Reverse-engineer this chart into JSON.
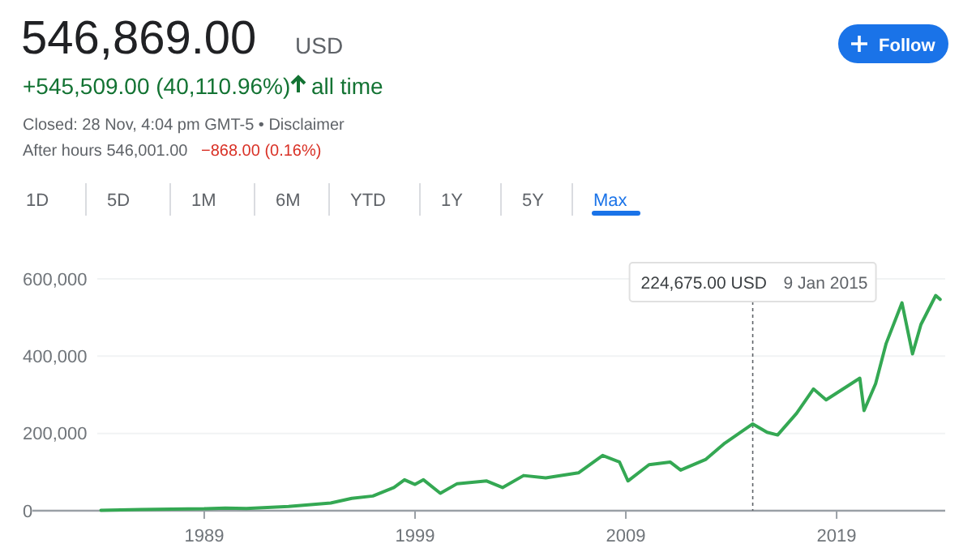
{
  "chart_data": {
    "type": "line",
    "title": "546,869.00",
    "annotations": [
      "USD",
      "+545,509.00 (40,110.96%)",
      "all time",
      "Closed: 28 Nov, 4:04 pm GMT-5 • Disclaimer",
      "After hours 546,001.00",
      "−868.00 (0.16%)",
      "Follow",
      "1D",
      "5D",
      "1M",
      "6M",
      "YTD",
      "1Y",
      "5Y",
      "Max",
      "224,675.00 USD",
      "9 Jan 2015"
    ],
    "x": [
      1984.1,
      1986,
      1989,
      1990,
      1991,
      1993,
      1995,
      1996,
      1997,
      1998,
      1998.5,
      1999,
      1999.4,
      2000.2,
      2001,
      2002.4,
      2003.15,
      2004.15,
      2005.2,
      2006.75,
      2007.9,
      2008.7,
      2009.1,
      2010.1,
      2011.1,
      2011.6,
      2012.8,
      2013.7,
      2015.02,
      2015.7,
      2016.2,
      2017.1,
      2017.9,
      2018.5,
      2020.1,
      2020.3,
      2020.85,
      2021.35,
      2022.1,
      2022.6,
      2023.0,
      2023.7,
      2023.91
    ],
    "series": [
      {
        "color": "#34a853",
        "values": [
          1000,
          3000,
          5000,
          7000,
          6000,
          11000,
          20000,
          32000,
          38000,
          60000,
          80000,
          68000,
          80000,
          45000,
          70000,
          77000,
          60000,
          91000,
          85000,
          98000,
          143000,
          126000,
          77000,
          119000,
          126000,
          105000,
          133000,
          175000,
          224675,
          203000,
          196000,
          252000,
          315000,
          287000,
          343000,
          259000,
          329000,
          433000,
          538000,
          406000,
          482000,
          557000,
          546869
        ]
      }
    ],
    "xlim": [
      1980.85,
      2024.15
    ],
    "xticks": [
      1989,
      1999,
      2009,
      2019
    ],
    "ylim": [
      0,
      600000
    ],
    "yticks": [
      0,
      {
        "value": 200000,
        "label": "200,000"
      },
      {
        "value": 400000,
        "label": "400,000"
      },
      {
        "value": 600000,
        "label": "600,000"
      }
    ],
    "ref_lines": [
      {
        "axis": "x",
        "value": 2015.02,
        "line_style": "dotted",
        "color": "#5f6368"
      }
    ],
    "grid": "y",
    "marker": "none",
    "line_style": "solid"
  }
}
